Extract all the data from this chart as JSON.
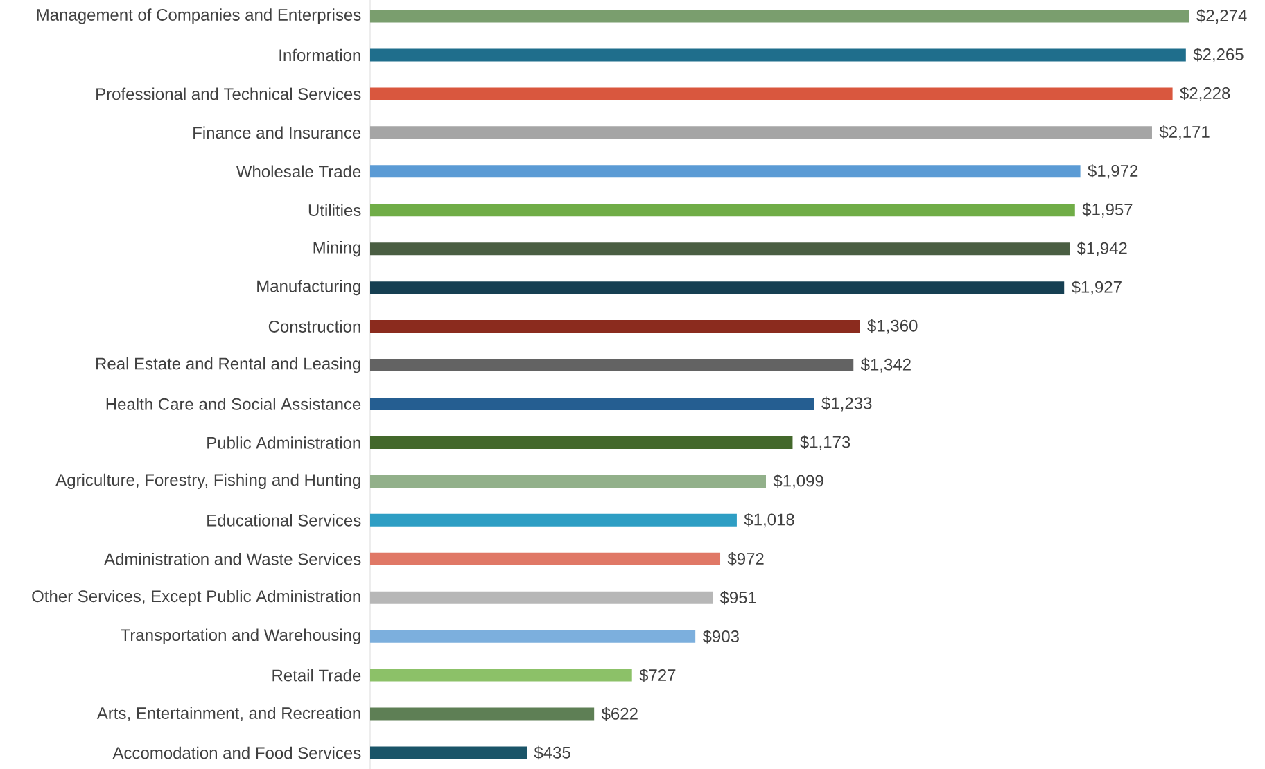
{
  "chart_data": {
    "type": "bar",
    "orientation": "horizontal",
    "categories": [
      "Management of Companies and Enterprises",
      "Information",
      "Professional and Technical Services",
      "Finance and Insurance",
      "Wholesale Trade",
      "Utilities",
      "Mining",
      "Manufacturing",
      "Construction",
      "Real Estate and Rental and Leasing",
      "Health Care and Social Assistance",
      "Public Administration",
      "Agriculture, Forestry, Fishing and Hunting",
      "Educational Services",
      "Administration and Waste Services",
      "Other Services, Except Public Administration",
      "Transportation and Warehousing",
      "Retail Trade",
      "Arts, Entertainment, and Recreation",
      "Accomodation and Food Services"
    ],
    "values": [
      2274,
      2265,
      2228,
      2171,
      1972,
      1957,
      1942,
      1927,
      1360,
      1342,
      1233,
      1173,
      1099,
      1018,
      972,
      951,
      903,
      727,
      622,
      435
    ],
    "value_labels": [
      "$2,274",
      "$2,265",
      "$2,228",
      "$2,171",
      "$1,972",
      "$1,957",
      "$1,942",
      "$1,927",
      "$1,360",
      "$1,342",
      "$1,233",
      "$1,173",
      "$1,099",
      "$1,018",
      "$972",
      "$951",
      "$903",
      "$727",
      "$622",
      "$435"
    ],
    "colors": [
      "#7a9e6e",
      "#1f6e8c",
      "#d9573e",
      "#a5a5a5",
      "#5b9bd5",
      "#70ad47",
      "#4a5e42",
      "#163f52",
      "#8b2b1e",
      "#636363",
      "#255e91",
      "#43682b",
      "#92b08a",
      "#2e9ec4",
      "#e07866",
      "#b7b7b7",
      "#7cafdd",
      "#8cc168",
      "#5e7f55",
      "#1a5468"
    ]
  }
}
